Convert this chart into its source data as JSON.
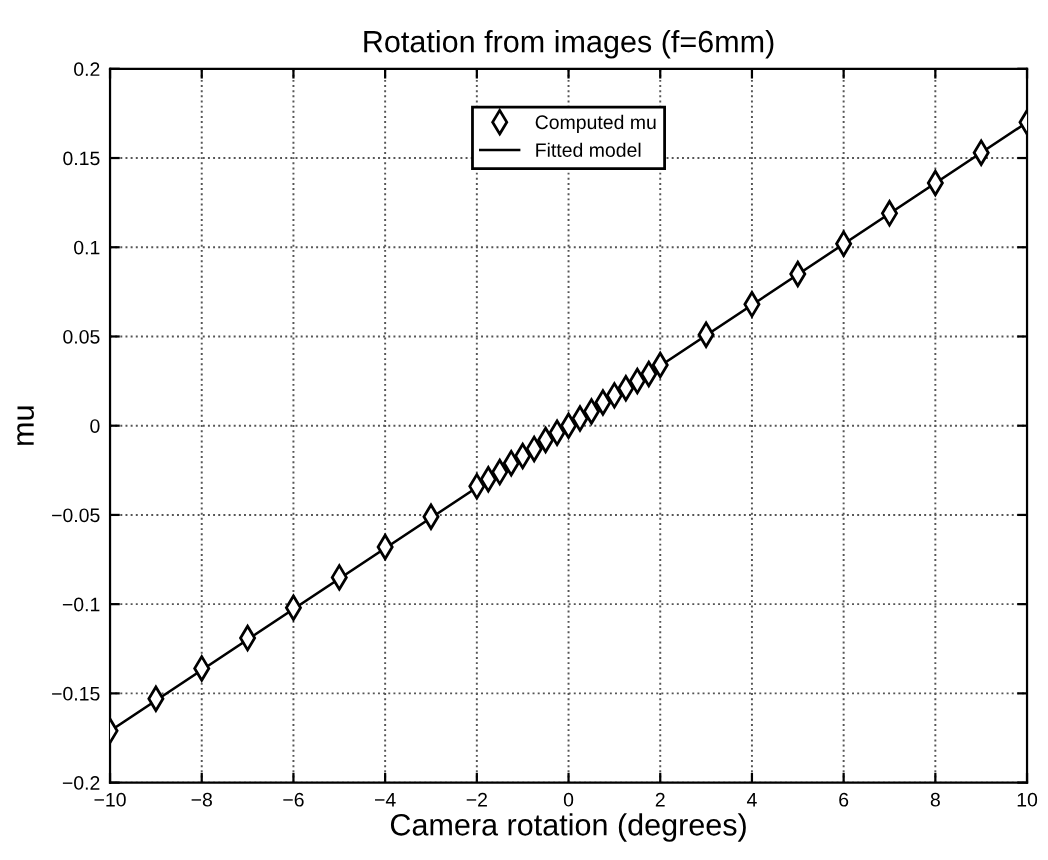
{
  "chart_data": {
    "type": "scatter",
    "title": "Rotation from images (f=6mm)",
    "xlabel": "Camera rotation (degrees)",
    "ylabel": "mu",
    "series": [
      {
        "name": "Computed mu",
        "color": "#000000",
        "marker": "diamond",
        "x": [
          -10,
          -9,
          -8,
          -7,
          -6,
          -5,
          -4,
          -3,
          -2,
          -1.75,
          -1.5,
          -1.25,
          -1,
          -0.75,
          -0.5,
          -0.25,
          0,
          0.25,
          0.5,
          0.75,
          1,
          1.25,
          1.5,
          1.75,
          2,
          3,
          4,
          5,
          6,
          7,
          8,
          9,
          10
        ],
        "values": [
          -0.171,
          -0.153,
          -0.136,
          -0.119,
          -0.102,
          -0.085,
          -0.068,
          -0.051,
          -0.034,
          -0.03,
          -0.026,
          -0.021,
          -0.017,
          -0.013,
          -0.008,
          -0.004,
          0,
          0.004,
          0.008,
          0.013,
          0.017,
          0.021,
          0.025,
          0.029,
          0.034,
          0.051,
          0.068,
          0.085,
          0.102,
          0.119,
          0.136,
          0.153,
          0.17
        ]
      },
      {
        "name": "Fitted model",
        "type": "line",
        "color": "#000000",
        "marker": "none",
        "line_style": "solid",
        "x": [
          -10,
          10
        ],
        "values": [
          -0.171,
          0.17
        ]
      }
    ],
    "xlim": [
      -10,
      10
    ],
    "xticks": [
      {
        "value": -10,
        "label": "−10"
      },
      {
        "value": -8,
        "label": "−8"
      },
      {
        "value": -6,
        "label": "−6"
      },
      {
        "value": -4,
        "label": "−4"
      },
      {
        "value": -2,
        "label": "−2"
      },
      0,
      2,
      4,
      6,
      8,
      10
    ],
    "ylim": [
      -0.2,
      0.2
    ],
    "yticks": [
      {
        "value": -0.2,
        "label": "−0.2"
      },
      {
        "value": -0.15,
        "label": "−0.15"
      },
      {
        "value": -0.1,
        "label": "−0.1"
      },
      {
        "value": -0.05,
        "label": "−0.05"
      },
      0,
      0.05,
      0.1,
      0.15,
      0.2
    ],
    "grid": true,
    "legend": "top"
  }
}
